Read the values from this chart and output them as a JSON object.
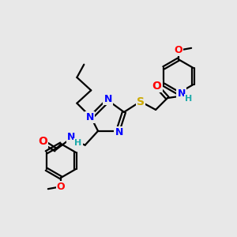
{
  "background_color": "#e8e8e8",
  "atom_colors": {
    "N": "#0000ff",
    "O": "#ff0000",
    "S": "#ccaa00",
    "H": "#20aaaa"
  },
  "bond_color": "#000000",
  "bond_width": 1.6,
  "figsize": [
    3.0,
    3.0
  ],
  "dpi": 100
}
